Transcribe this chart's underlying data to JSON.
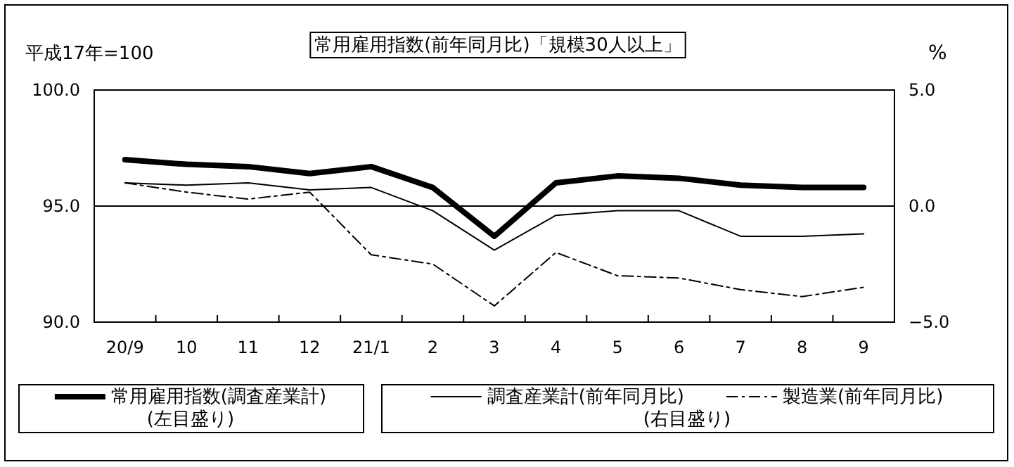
{
  "chart_data": {
    "type": "line",
    "title": "常用雇用指数(前年同月比)「規模30人以上」",
    "ylabel": "平成17年=100",
    "y2label": "%",
    "categories": [
      "20/9",
      "10",
      "11",
      "12",
      "21/1",
      "2",
      "3",
      "4",
      "5",
      "6",
      "7",
      "8",
      "9"
    ],
    "series": [
      {
        "name": "常用雇用指数(調査産業計)",
        "color": "#000000",
        "line_style": "solid",
        "values": [
          97.0,
          96.8,
          96.7,
          96.4,
          96.7,
          95.8,
          93.7,
          96.0,
          96.3,
          96.2,
          95.9,
          95.8,
          95.8
        ]
      },
      {
        "name": "調査産業計(前年同月比)",
        "color": "#000000",
        "axis": "y2",
        "line_style": "solid",
        "values": [
          1.0,
          0.9,
          1.0,
          0.7,
          0.8,
          -0.2,
          -1.9,
          -0.4,
          -0.2,
          -0.2,
          -1.3,
          -1.3,
          -1.2
        ]
      },
      {
        "name": "製造業(前年同月比)",
        "color": "#000000",
        "axis": "y2",
        "line_style": "dashed",
        "values": [
          1.0,
          0.6,
          0.3,
          0.6,
          -2.1,
          -2.5,
          -4.3,
          -2.0,
          -3.0,
          -3.1,
          -3.6,
          -3.9,
          -3.5
        ]
      }
    ],
    "ylim": [
      90,
      100
    ],
    "yticks": [
      {
        "value": 90,
        "label": "90.0"
      },
      {
        "value": 95,
        "label": "95.0"
      },
      {
        "value": 100,
        "label": "100.0"
      }
    ],
    "y2lim": [
      -5,
      5
    ],
    "y2ticks": [
      {
        "value": -5,
        "label": "−5.0"
      },
      {
        "value": 0,
        "label": "0.0"
      },
      {
        "value": 5,
        "label": "5.0"
      }
    ],
    "annotations": [
      "(左目盛り)",
      "(右目盛り)"
    ],
    "legend": "bottom",
    "marker": "none",
    "grid": "y"
  }
}
